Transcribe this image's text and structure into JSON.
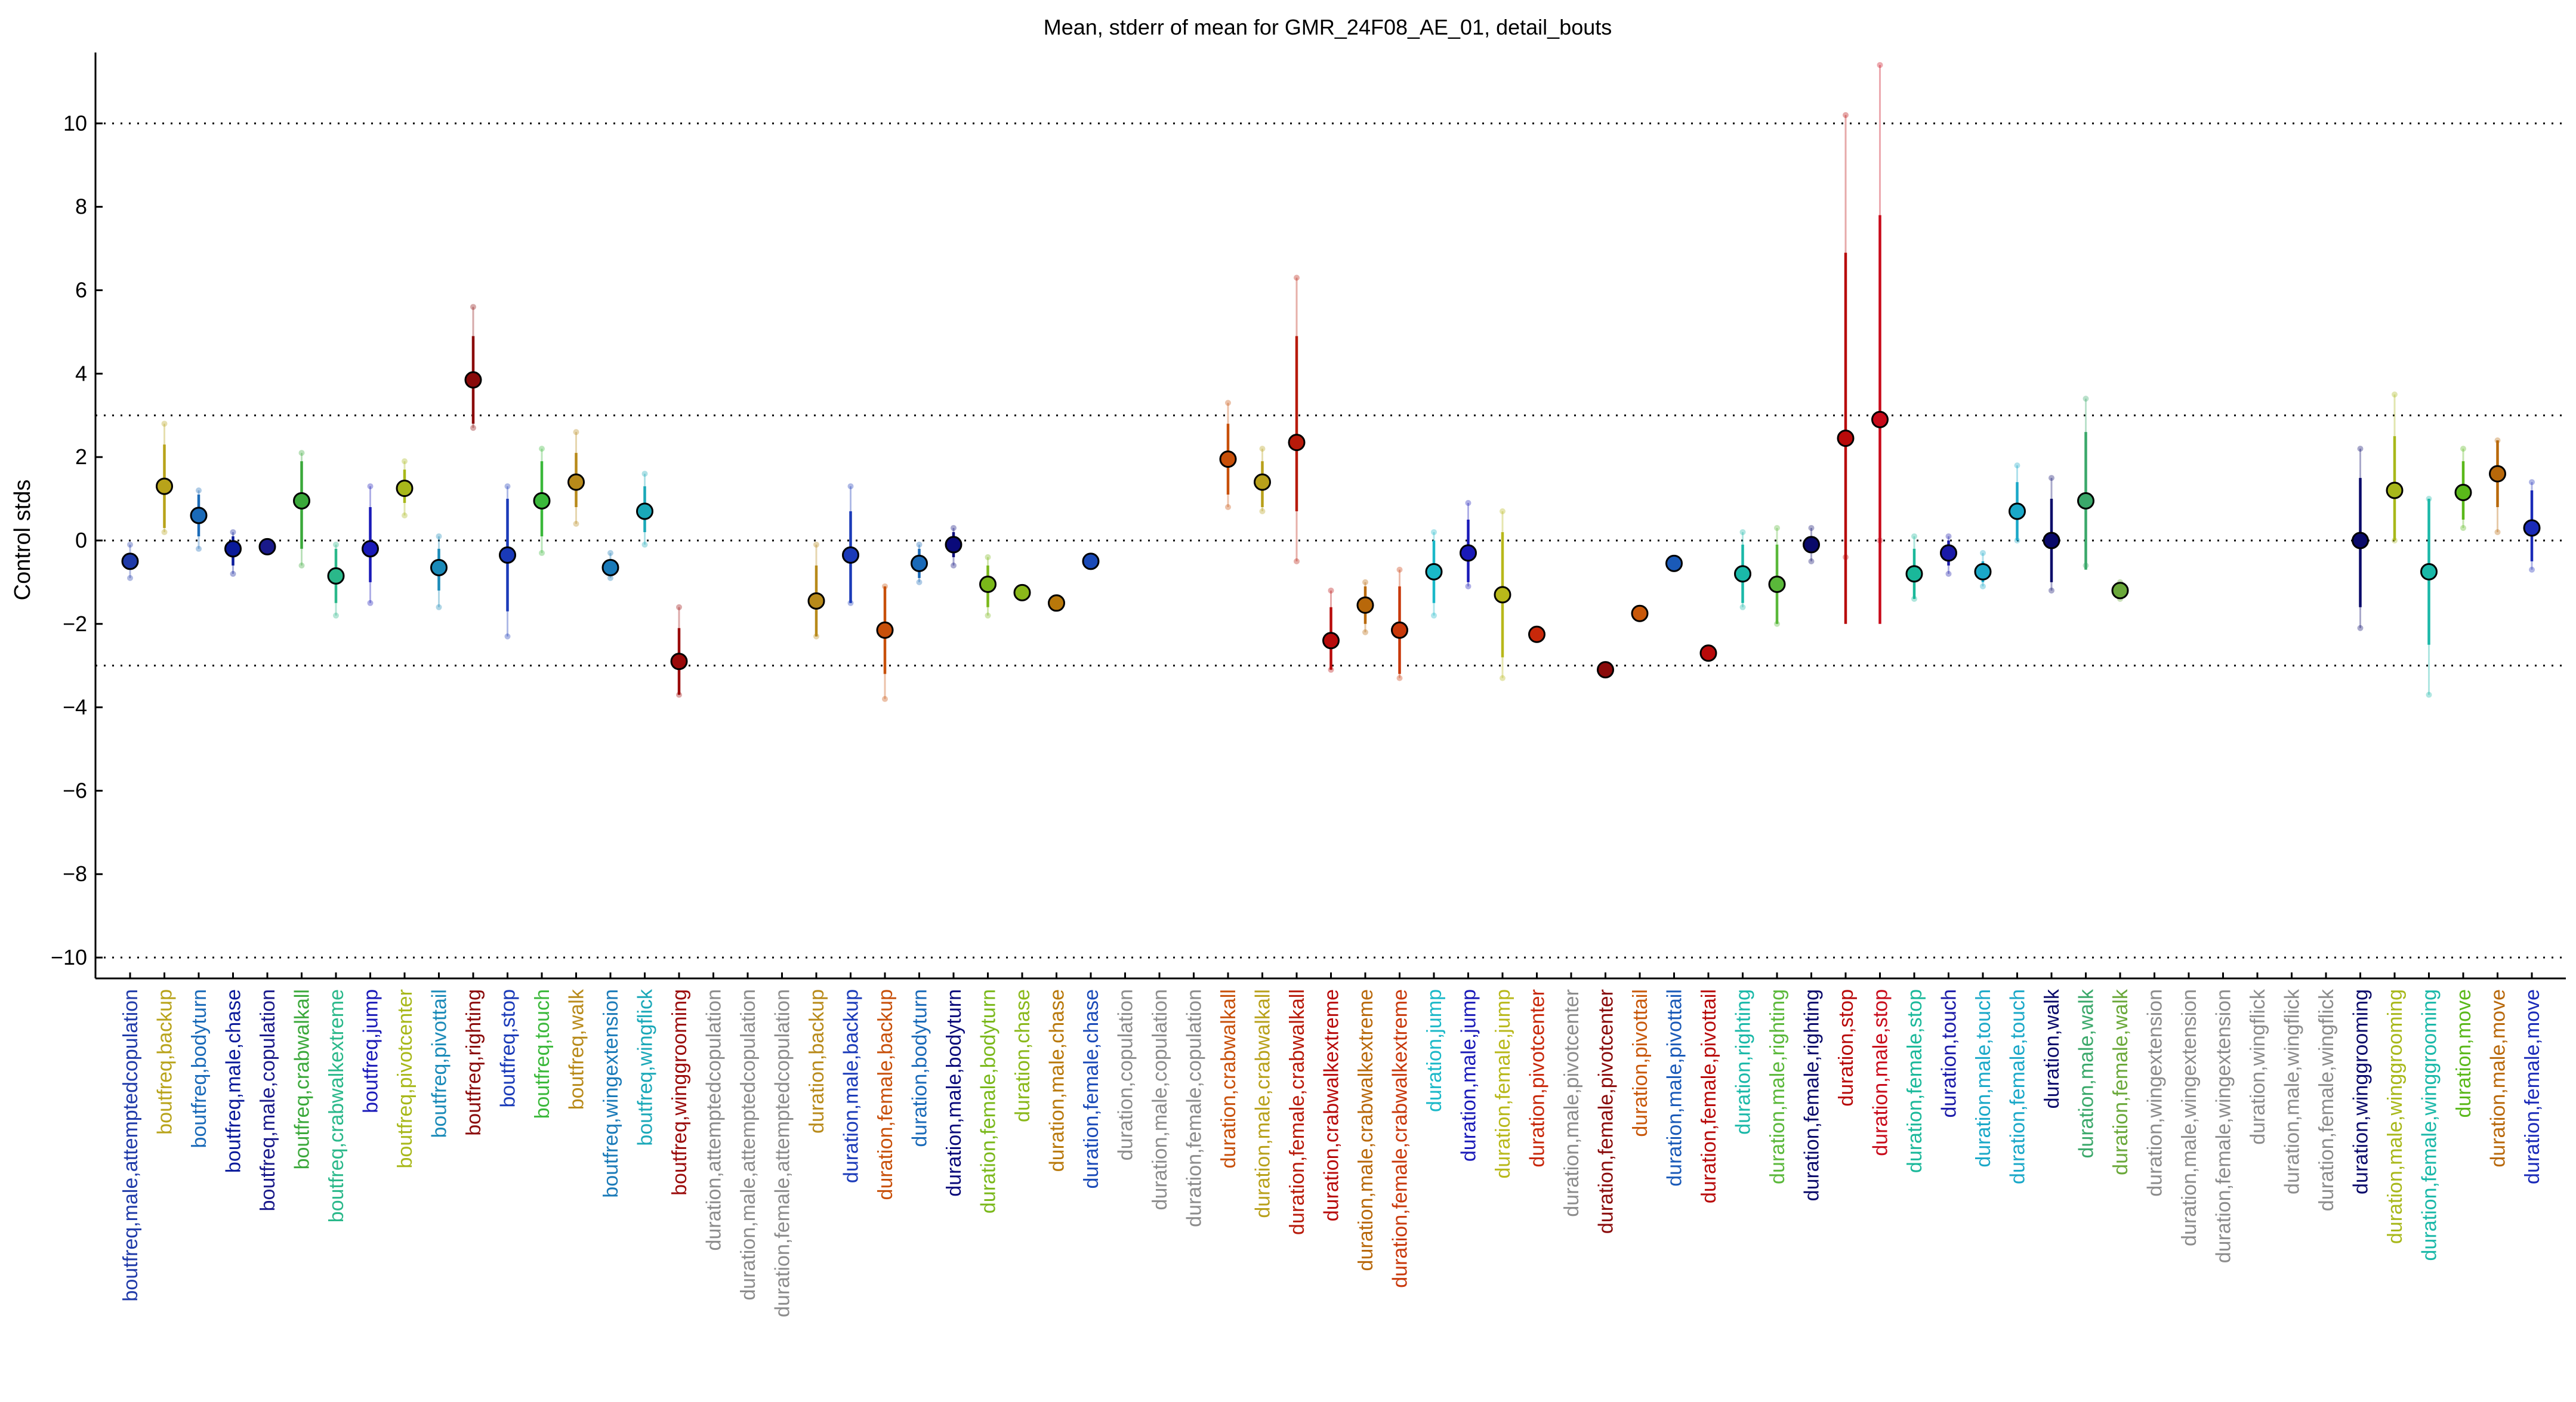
{
  "chart_data": {
    "type": "scatter",
    "title": "Mean, stderr of mean for GMR_24F08_AE_01, detail_bouts",
    "ylabel": "Control stds",
    "xlabel": "",
    "ylim": [
      -10.5,
      11.7
    ],
    "yticks": [
      -10,
      -8,
      -6,
      -4,
      -2,
      0,
      2,
      4,
      6,
      8,
      10
    ],
    "reference_lines": [
      -10,
      -3,
      0,
      3,
      10
    ],
    "grid": false,
    "points": [
      {
        "label": "boutfreq,male,attemptedcopulation",
        "mean": -0.5,
        "se_lo": -0.7,
        "se_hi": -0.3,
        "lo": -0.9,
        "hi": -0.1,
        "color": "#1f3aa8"
      },
      {
        "label": "boutfreq,backup",
        "mean": 1.3,
        "se_lo": 0.3,
        "se_hi": 2.3,
        "lo": 0.2,
        "hi": 2.8,
        "color": "#b8a31a"
      },
      {
        "label": "boutfreq,bodyturn",
        "mean": 0.6,
        "se_lo": 0.1,
        "se_hi": 1.1,
        "lo": -0.2,
        "hi": 1.2,
        "color": "#1a6ab8"
      },
      {
        "label": "boutfreq,male,chase",
        "mean": -0.2,
        "se_lo": -0.6,
        "se_hi": 0.1,
        "lo": -0.8,
        "hi": 0.2,
        "color": "#0a1a9a"
      },
      {
        "label": "boutfreq,male,copulation",
        "mean": -0.15,
        "se_lo": -0.2,
        "se_hi": -0.1,
        "lo": -0.2,
        "hi": -0.1,
        "color": "#1a1a8a"
      },
      {
        "label": "boutfreq,crabwalkall",
        "mean": 0.95,
        "se_lo": -0.2,
        "se_hi": 1.9,
        "lo": -0.6,
        "hi": 2.1,
        "color": "#3aa83a"
      },
      {
        "label": "boutfreq,crabwalkextreme",
        "mean": -0.85,
        "se_lo": -1.5,
        "se_hi": -0.2,
        "lo": -1.8,
        "hi": -0.1,
        "color": "#2ab88a"
      },
      {
        "label": "boutfreq,jump",
        "mean": -0.2,
        "se_lo": -1.0,
        "se_hi": 0.8,
        "lo": -1.5,
        "hi": 1.3,
        "color": "#1a1ab8"
      },
      {
        "label": "boutfreq,pivotcenter",
        "mean": 1.25,
        "se_lo": 0.9,
        "se_hi": 1.7,
        "lo": 0.6,
        "hi": 1.9,
        "color": "#a8b81a"
      },
      {
        "label": "boutfreq,pivottail",
        "mean": -0.65,
        "se_lo": -1.2,
        "se_hi": -0.2,
        "lo": -1.6,
        "hi": 0.1,
        "color": "#1a8ab8"
      },
      {
        "label": "boutfreq,righting",
        "mean": 3.85,
        "se_lo": 2.8,
        "se_hi": 4.9,
        "lo": 2.7,
        "hi": 5.6,
        "color": "#8a0a0a"
      },
      {
        "label": "boutfreq,stop",
        "mean": -0.35,
        "se_lo": -1.7,
        "se_hi": 1.0,
        "lo": -2.3,
        "hi": 1.3,
        "color": "#1a3ab8"
      },
      {
        "label": "boutfreq,touch",
        "mean": 0.95,
        "se_lo": 0.1,
        "se_hi": 1.9,
        "lo": -0.3,
        "hi": 2.2,
        "color": "#3ab83a"
      },
      {
        "label": "boutfreq,walk",
        "mean": 1.4,
        "se_lo": 0.8,
        "se_hi": 2.1,
        "lo": 0.4,
        "hi": 2.6,
        "color": "#b88a1a"
      },
      {
        "label": "boutfreq,wingextension",
        "mean": -0.65,
        "se_lo": -0.8,
        "se_hi": -0.5,
        "lo": -0.9,
        "hi": -0.3,
        "color": "#1a7ab8"
      },
      {
        "label": "boutfreq,wingflick",
        "mean": 0.7,
        "se_lo": 0.2,
        "se_hi": 1.3,
        "lo": -0.1,
        "hi": 1.6,
        "color": "#1aa8b8"
      },
      {
        "label": "boutfreq,winggrooming",
        "mean": -2.9,
        "se_lo": -3.7,
        "se_hi": -2.1,
        "lo": -3.7,
        "hi": -1.6,
        "color": "#9a0a0a"
      },
      {
        "label": "duration,attemptedcopulation",
        "mean": null,
        "color": "#8c8c8c"
      },
      {
        "label": "duration,male,attemptedcopulation",
        "mean": null,
        "color": "#8c8c8c"
      },
      {
        "label": "duration,female,attemptedcopulation",
        "mean": null,
        "color": "#8c8c8c"
      },
      {
        "label": "duration,backup",
        "mean": -1.45,
        "se_lo": -2.3,
        "se_hi": -0.6,
        "lo": -2.3,
        "hi": -0.1,
        "color": "#b88a1a"
      },
      {
        "label": "duration,male,backup",
        "mean": -0.35,
        "se_lo": -1.5,
        "se_hi": 0.7,
        "lo": -1.5,
        "hi": 1.3,
        "color": "#1a3ab8"
      },
      {
        "label": "duration,female,backup",
        "mean": -2.15,
        "se_lo": -3.2,
        "se_hi": -1.1,
        "lo": -3.8,
        "hi": -1.1,
        "color": "#c8500a"
      },
      {
        "label": "duration,bodyturn",
        "mean": -0.55,
        "se_lo": -0.9,
        "se_hi": -0.2,
        "lo": -1.0,
        "hi": -0.1,
        "color": "#1a6ab8"
      },
      {
        "label": "duration,male,bodyturn",
        "mean": -0.1,
        "se_lo": -0.4,
        "se_hi": 0.2,
        "lo": -0.6,
        "hi": 0.3,
        "color": "#0a0a7a"
      },
      {
        "label": "duration,female,bodyturn",
        "mean": -1.05,
        "se_lo": -1.6,
        "se_hi": -0.6,
        "lo": -1.8,
        "hi": -0.4,
        "color": "#7ab81a"
      },
      {
        "label": "duration,chase",
        "mean": -1.25,
        "se_lo": -1.3,
        "se_hi": -1.2,
        "lo": -1.3,
        "hi": -1.2,
        "color": "#8ab81a"
      },
      {
        "label": "duration,male,chase",
        "mean": -1.5,
        "se_lo": -1.6,
        "se_hi": -1.4,
        "lo": -1.6,
        "hi": -1.4,
        "color": "#b8780a"
      },
      {
        "label": "duration,female,chase",
        "mean": -0.5,
        "se_lo": -0.6,
        "se_hi": -0.4,
        "lo": -0.6,
        "hi": -0.4,
        "color": "#1a4ab8"
      },
      {
        "label": "duration,copulation",
        "mean": null,
        "color": "#8c8c8c"
      },
      {
        "label": "duration,male,copulation",
        "mean": null,
        "color": "#8c8c8c"
      },
      {
        "label": "duration,female,copulation",
        "mean": null,
        "color": "#8c8c8c"
      },
      {
        "label": "duration,crabwalkall",
        "mean": 1.95,
        "se_lo": 1.1,
        "se_hi": 2.8,
        "lo": 0.8,
        "hi": 3.3,
        "color": "#c8500a"
      },
      {
        "label": "duration,male,crabwalkall",
        "mean": 1.4,
        "se_lo": 0.8,
        "se_hi": 1.9,
        "lo": 0.7,
        "hi": 2.2,
        "color": "#b8a01a"
      },
      {
        "label": "duration,female,crabwalkall",
        "mean": 2.35,
        "se_lo": 0.7,
        "se_hi": 4.9,
        "lo": -0.5,
        "hi": 6.3,
        "color": "#b81a0a"
      },
      {
        "label": "duration,crabwalkextreme",
        "mean": -2.4,
        "se_lo": -3.1,
        "se_hi": -1.6,
        "lo": -3.1,
        "hi": -1.2,
        "color": "#b80a0a"
      },
      {
        "label": "duration,male,crabwalkextreme",
        "mean": -1.55,
        "se_lo": -2.0,
        "se_hi": -1.1,
        "lo": -2.2,
        "hi": -1.0,
        "color": "#b8680a"
      },
      {
        "label": "duration,female,crabwalkextreme",
        "mean": -2.15,
        "se_lo": -3.2,
        "se_hi": -1.1,
        "lo": -3.3,
        "hi": -0.7,
        "color": "#c8380a"
      },
      {
        "label": "duration,jump",
        "mean": -0.75,
        "se_lo": -1.5,
        "se_hi": 0.0,
        "lo": -1.8,
        "hi": 0.2,
        "color": "#1ab8c8"
      },
      {
        "label": "duration,male,jump",
        "mean": -0.3,
        "se_lo": -1.0,
        "se_hi": 0.5,
        "lo": -1.1,
        "hi": 0.9,
        "color": "#1a1ab8"
      },
      {
        "label": "duration,female,jump",
        "mean": -1.3,
        "se_lo": -2.8,
        "se_hi": 0.2,
        "lo": -3.3,
        "hi": 0.7,
        "color": "#b8b81a"
      },
      {
        "label": "duration,pivotcenter",
        "mean": -2.25,
        "se_lo": -2.3,
        "se_hi": -2.2,
        "lo": -2.3,
        "hi": -2.2,
        "color": "#c8280a"
      },
      {
        "label": "duration,male,pivotcenter",
        "mean": null,
        "color": "#8c8c8c"
      },
      {
        "label": "duration,female,pivotcenter",
        "mean": -3.1,
        "se_lo": -3.15,
        "se_hi": -3.05,
        "lo": -3.15,
        "hi": -3.05,
        "color": "#8a0a0a"
      },
      {
        "label": "duration,pivottail",
        "mean": -1.75,
        "se_lo": -1.8,
        "se_hi": -1.7,
        "lo": -1.8,
        "hi": -1.7,
        "color": "#c8580a"
      },
      {
        "label": "duration,male,pivottail",
        "mean": -0.55,
        "se_lo": -0.6,
        "se_hi": -0.5,
        "lo": -0.6,
        "hi": -0.5,
        "color": "#1a5ab8"
      },
      {
        "label": "duration,female,pivottail",
        "mean": -2.7,
        "se_lo": -2.75,
        "se_hi": -2.65,
        "lo": -2.75,
        "hi": -2.65,
        "color": "#b80a0a"
      },
      {
        "label": "duration,righting",
        "mean": -0.8,
        "se_lo": -1.5,
        "se_hi": -0.1,
        "lo": -1.6,
        "hi": 0.2,
        "color": "#1ab8a8"
      },
      {
        "label": "duration,male,righting",
        "mean": -1.05,
        "se_lo": -2.0,
        "se_hi": -0.1,
        "lo": -2.0,
        "hi": 0.3,
        "color": "#5ab83a"
      },
      {
        "label": "duration,female,righting",
        "mean": -0.1,
        "se_lo": -0.3,
        "se_hi": 0.1,
        "lo": -0.5,
        "hi": 0.3,
        "color": "#0a0a6a"
      },
      {
        "label": "duration,stop",
        "mean": 2.45,
        "se_lo": -2.0,
        "se_hi": 6.9,
        "lo": -0.4,
        "hi": 10.2,
        "color": "#b80a0a"
      },
      {
        "label": "duration,male,stop",
        "mean": 2.9,
        "se_lo": -2.0,
        "se_hi": 7.8,
        "lo": 0.0,
        "hi": 11.4,
        "color": "#c80a1a"
      },
      {
        "label": "duration,female,stop",
        "mean": -0.8,
        "se_lo": -1.4,
        "se_hi": -0.2,
        "lo": -1.4,
        "hi": 0.1,
        "color": "#1ab89a"
      },
      {
        "label": "duration,touch",
        "mean": -0.3,
        "se_lo": -0.6,
        "se_hi": 0.0,
        "lo": -0.8,
        "hi": 0.1,
        "color": "#1a1aa8"
      },
      {
        "label": "duration,male,touch",
        "mean": -0.75,
        "se_lo": -1.0,
        "se_hi": -0.5,
        "lo": -1.1,
        "hi": -0.3,
        "color": "#1aa8c8"
      },
      {
        "label": "duration,female,touch",
        "mean": 0.7,
        "se_lo": 0.0,
        "se_hi": 1.4,
        "lo": 0.0,
        "hi": 1.8,
        "color": "#1aa8c8"
      },
      {
        "label": "duration,walk",
        "mean": 0.0,
        "se_lo": -1.0,
        "se_hi": 1.0,
        "lo": -1.2,
        "hi": 1.5,
        "color": "#0a0a6a"
      },
      {
        "label": "duration,male,walk",
        "mean": 0.95,
        "se_lo": -0.7,
        "se_hi": 2.6,
        "lo": -0.6,
        "hi": 3.4,
        "color": "#3aa86a"
      },
      {
        "label": "duration,female,walk",
        "mean": -1.2,
        "se_lo": -1.4,
        "se_hi": -1.0,
        "lo": -1.4,
        "hi": -1.0,
        "color": "#6aa83a"
      },
      {
        "label": "duration,wingextension",
        "mean": null,
        "color": "#8c8c8c"
      },
      {
        "label": "duration,male,wingextension",
        "mean": null,
        "color": "#8c8c8c"
      },
      {
        "label": "duration,female,wingextension",
        "mean": null,
        "color": "#8c8c8c"
      },
      {
        "label": "duration,wingflick",
        "mean": null,
        "color": "#8c8c8c"
      },
      {
        "label": "duration,male,wingflick",
        "mean": null,
        "color": "#8c8c8c"
      },
      {
        "label": "duration,female,wingflick",
        "mean": null,
        "color": "#8c8c8c"
      },
      {
        "label": "duration,winggrooming",
        "mean": 0.0,
        "se_lo": -1.6,
        "se_hi": 1.5,
        "lo": -2.1,
        "hi": 2.2,
        "color": "#0a0a6a"
      },
      {
        "label": "duration,male,winggrooming",
        "mean": 1.2,
        "se_lo": 0.0,
        "se_hi": 2.5,
        "lo": 0.0,
        "hi": 3.5,
        "color": "#a8b81a"
      },
      {
        "label": "duration,female,winggrooming",
        "mean": -0.75,
        "se_lo": -2.5,
        "se_hi": 1.0,
        "lo": -3.7,
        "hi": 1.0,
        "color": "#1ab8a8"
      },
      {
        "label": "duration,move",
        "mean": 1.15,
        "se_lo": 0.5,
        "se_hi": 1.9,
        "lo": 0.3,
        "hi": 2.2,
        "color": "#5ab81a"
      },
      {
        "label": "duration,male,move",
        "mean": 1.6,
        "se_lo": 0.8,
        "se_hi": 2.4,
        "lo": 0.2,
        "hi": 2.4,
        "color": "#b8680a"
      },
      {
        "label": "duration,female,move",
        "mean": 0.3,
        "se_lo": -0.5,
        "se_hi": 1.2,
        "lo": -0.7,
        "hi": 1.4,
        "color": "#1a2ab8"
      }
    ]
  }
}
